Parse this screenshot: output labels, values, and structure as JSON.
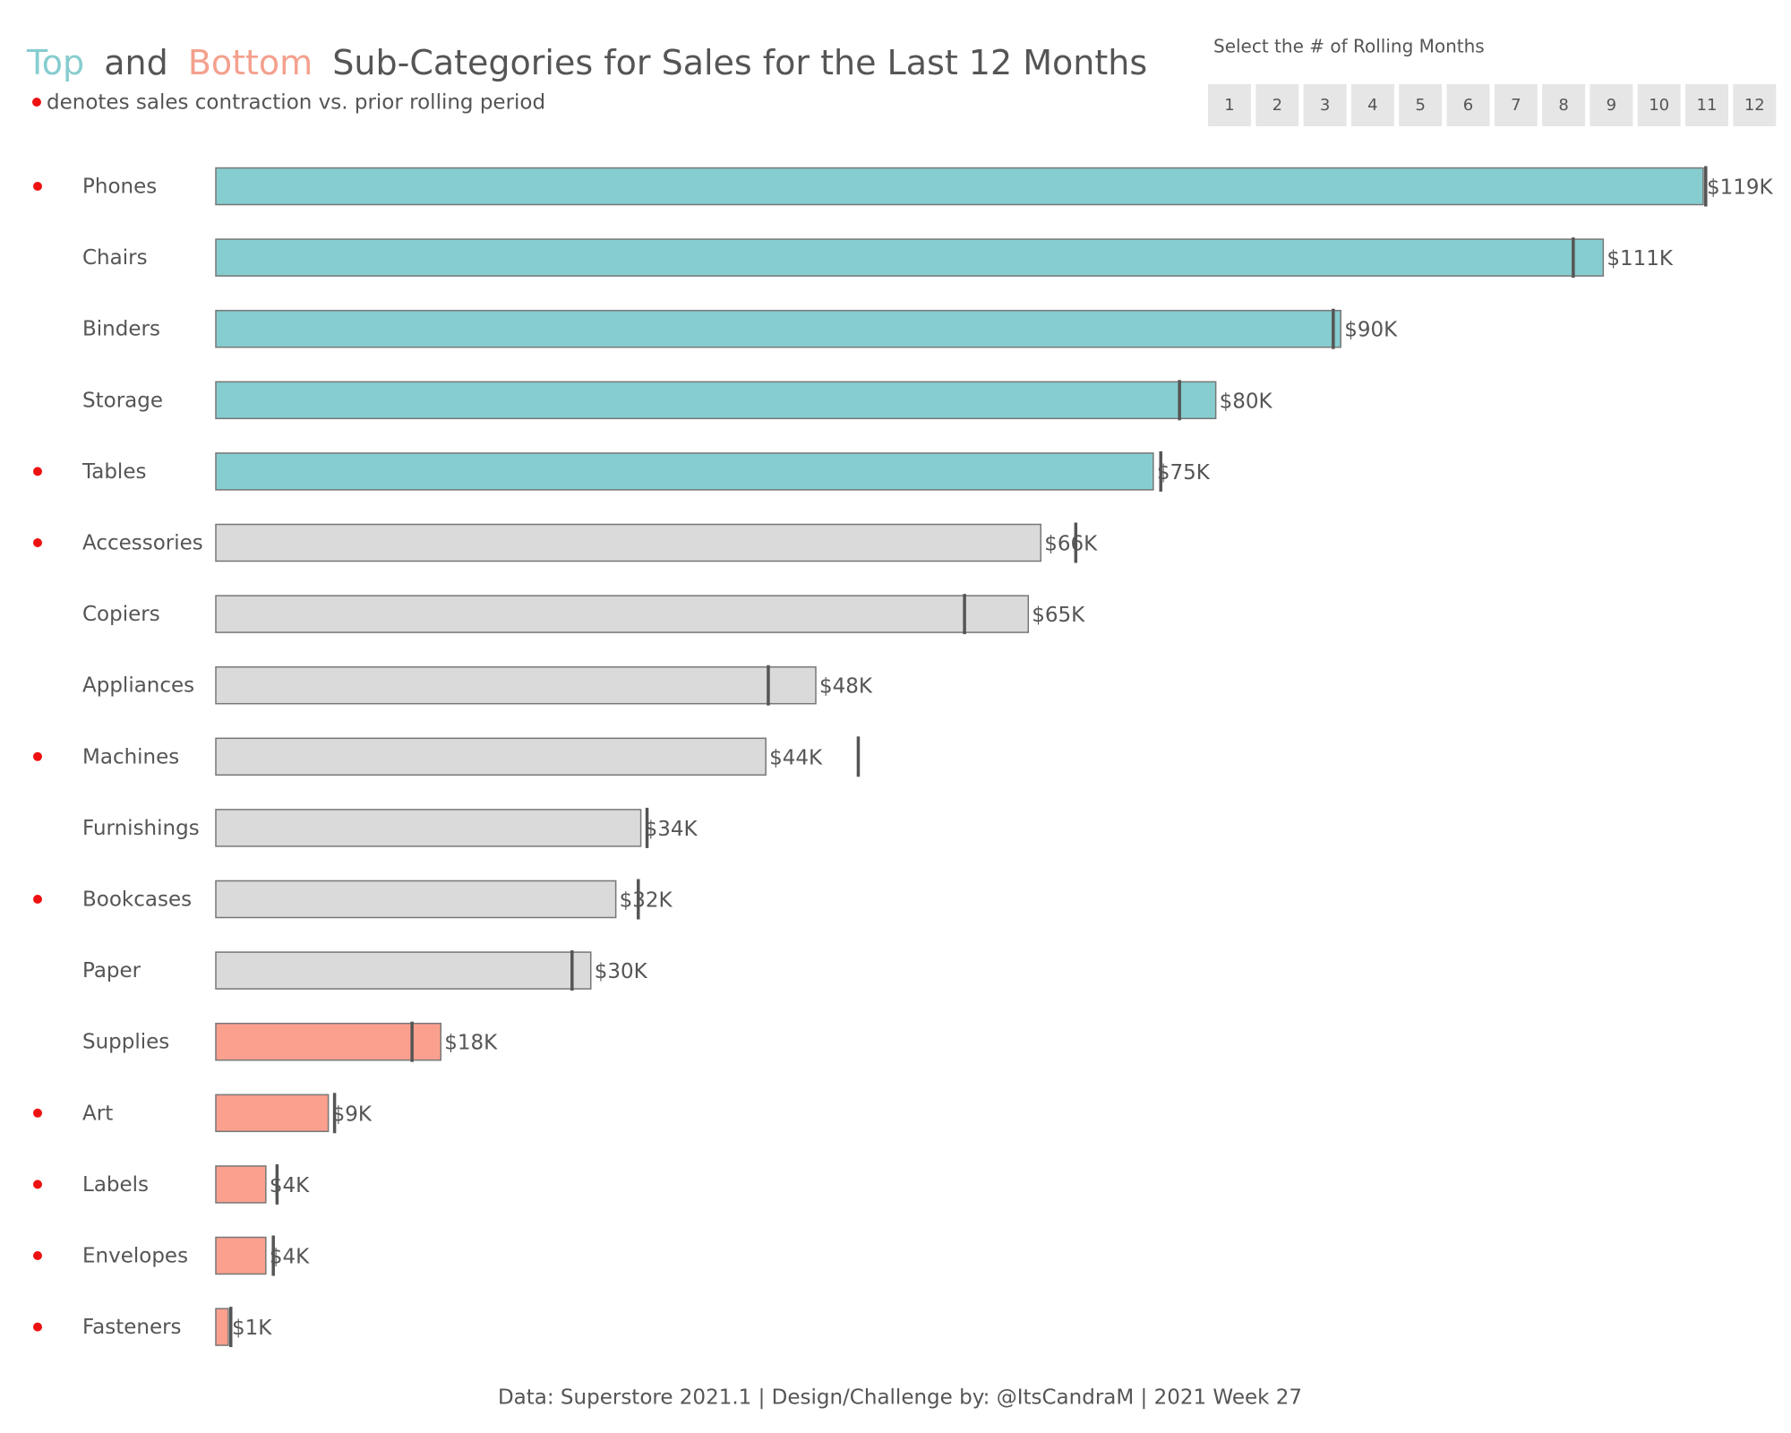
{
  "chart_data": {
    "type": "bar",
    "title_parts": [
      {
        "text": "Top",
        "color": "#86cdcf"
      },
      {
        "text": "and",
        "color": "#555555"
      },
      {
        "text": "Bottom",
        "color": "#f4a08d"
      },
      {
        "text": "Sub-Categories for Sales for the Last 12 Months",
        "color": "#555555"
      }
    ],
    "subtitle": "denotes sales contraction vs. prior rolling period",
    "filter": {
      "label": "Select the # of Rolling Months",
      "options": [
        1,
        2,
        3,
        4,
        5,
        6,
        7,
        8,
        9,
        10,
        11,
        12
      ]
    },
    "categories": [
      "Phones",
      "Chairs",
      "Binders",
      "Storage",
      "Tables",
      "Accessories",
      "Copiers",
      "Appliances",
      "Machines",
      "Furnishings",
      "Bookcases",
      "Paper",
      "Supplies",
      "Art",
      "Labels",
      "Envelopes",
      "Fasteners"
    ],
    "values": [
      119,
      111,
      90,
      80,
      75,
      66,
      65,
      48,
      44,
      34,
      32,
      30,
      18,
      9,
      4,
      4,
      1
    ],
    "value_labels": [
      "$119K",
      "$111K",
      "$90K",
      "$80K",
      "$75K",
      "$66K",
      "$65K",
      "$48K",
      "$44K",
      "$34K",
      "$32K",
      "$30K",
      "$18K",
      "$9K",
      "$4K",
      "$4K",
      "$1K"
    ],
    "prior_values": [
      119.2,
      108.6,
      89.4,
      77.1,
      75.6,
      68.8,
      59.9,
      44.2,
      51.4,
      34.5,
      33.8,
      28.5,
      15.7,
      9.5,
      4.9,
      4.6,
      1.2
    ],
    "contraction": [
      true,
      false,
      false,
      false,
      true,
      true,
      false,
      false,
      true,
      false,
      true,
      false,
      false,
      true,
      true,
      true,
      true
    ],
    "colors": [
      "#86cdcf",
      "#86cdcf",
      "#86cdcf",
      "#86cdcf",
      "#86cdcf",
      "#dadada",
      "#dadada",
      "#dadada",
      "#dadada",
      "#dadada",
      "#dadada",
      "#dadada",
      "#fba08e",
      "#fba08e",
      "#fba08e",
      "#fba08e",
      "#fba08e"
    ],
    "contraction_color": "#ee1111",
    "footer": "Data: Superstore 2021.1 | Design/Challenge by: @ItsCandraM | 2021 Week 27"
  }
}
